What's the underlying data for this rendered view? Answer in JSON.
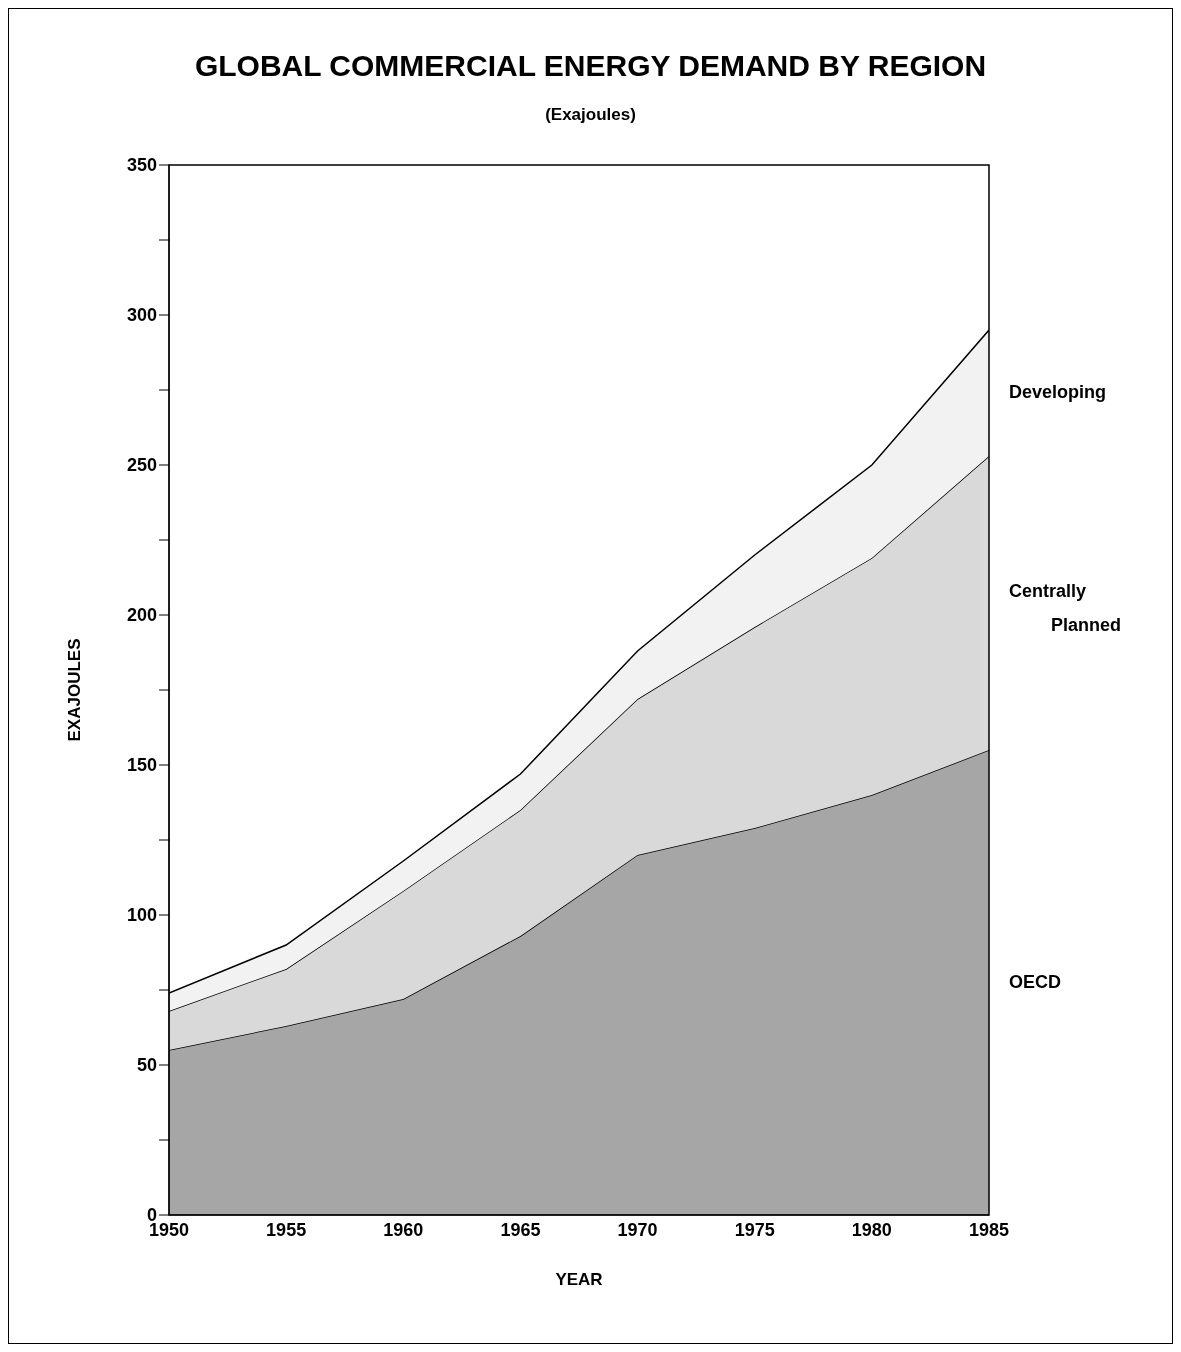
{
  "chart_data": {
    "type": "area",
    "stacked": true,
    "title": "GLOBAL COMMERCIAL ENERGY DEMAND BY REGION",
    "subtitle": "(Exajoules)",
    "xlabel": "YEAR",
    "ylabel": "EXAJOULES",
    "x": [
      1950,
      1955,
      1960,
      1965,
      1970,
      1975,
      1980,
      1985
    ],
    "series": [
      {
        "name": "OECD",
        "color": "#a6a6a6",
        "values": [
          55,
          63,
          72,
          93,
          120,
          129,
          140,
          155
        ]
      },
      {
        "name": "Centrally Planned",
        "color": "#d9d9d9",
        "values": [
          13,
          19,
          36,
          42,
          52,
          67,
          79,
          98
        ]
      },
      {
        "name": "Developing",
        "color": "#f2f2f2",
        "values": [
          6,
          8,
          10,
          12,
          16,
          24,
          31,
          42
        ]
      }
    ],
    "xlim": [
      1950,
      1985
    ],
    "xticks": [
      1950,
      1955,
      1960,
      1965,
      1970,
      1975,
      1980,
      1985
    ],
    "ylim": [
      0,
      350
    ],
    "yticks": [
      0,
      {
        "value": 25,
        "label": null
      },
      50,
      {
        "value": 75,
        "label": null
      },
      100,
      {
        "value": 125,
        "label": null
      },
      150,
      {
        "value": 175,
        "label": null
      },
      200,
      {
        "value": 225,
        "label": null
      },
      250,
      {
        "value": 275,
        "label": null
      },
      300,
      {
        "value": 325,
        "label": null
      },
      350
    ],
    "tick_labels": true
  }
}
